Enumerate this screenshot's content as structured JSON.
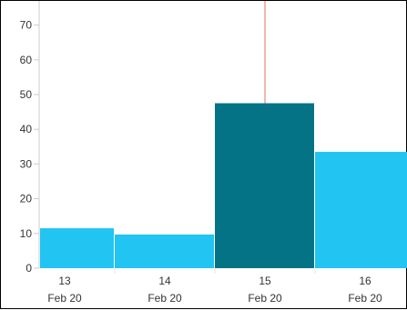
{
  "chart_data": {
    "type": "bar",
    "categories": [
      "13",
      "14",
      "15",
      "16"
    ],
    "sublabels": [
      "Feb 20",
      "Feb 20",
      "Feb 20",
      "Feb 20"
    ],
    "values": [
      11.5,
      9.7,
      47.5,
      33.5
    ],
    "highlight_index": 2,
    "y_ticks": [
      "0",
      "10",
      "20",
      "30",
      "40",
      "50",
      "60",
      "70"
    ],
    "ylim": [
      0,
      76
    ],
    "grid": false,
    "colors": {
      "bar": "#22C4F2",
      "bar_highlight": "#037385",
      "marker_line": "#E8705C",
      "axis": "#CCCCCC"
    }
  }
}
